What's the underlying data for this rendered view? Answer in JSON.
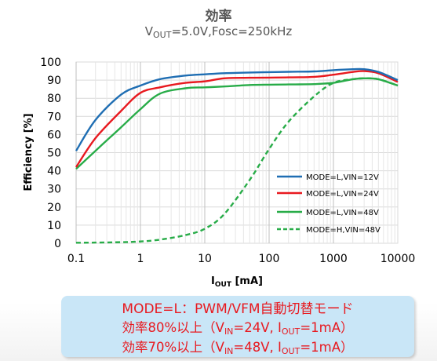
{
  "chart_data": {
    "type": "line",
    "title": "効率",
    "subtitle": {
      "pre": "V",
      "sub": "OUT",
      "post": "=5.0V,Fosc=250kHz"
    },
    "xlabel": {
      "pre": "I",
      "sub": "OUT",
      "post": " [mA]"
    },
    "ylabel": "Efficiency [%]",
    "x_scale": "log",
    "xlim": [
      0.1,
      10000
    ],
    "ylim": [
      0,
      100
    ],
    "x_ticks": [
      "0.1",
      "1",
      "10",
      "100",
      "1000",
      "10000"
    ],
    "y_ticks": [
      "0",
      "10",
      "20",
      "30",
      "40",
      "50",
      "60",
      "70",
      "80",
      "90",
      "100"
    ],
    "grid": true,
    "legend_position": "lower-right",
    "series": [
      {
        "name": "MODE=L,VIN=12V",
        "color": "#1f6eb3",
        "style": "solid",
        "x": [
          0.1,
          0.2,
          0.5,
          1,
          2,
          5,
          10,
          20,
          50,
          100,
          200,
          500,
          1000,
          2000,
          3000,
          5000,
          10000
        ],
        "y": [
          51,
          68,
          82,
          87,
          90.5,
          92.5,
          93.2,
          93.8,
          94.2,
          94.4,
          94.6,
          94.8,
          95.5,
          96,
          96,
          94.5,
          90
        ]
      },
      {
        "name": "MODE=L,VIN=24V",
        "color": "#e8191f",
        "style": "solid",
        "x": [
          0.1,
          0.2,
          0.5,
          1,
          2,
          5,
          10,
          20,
          50,
          100,
          200,
          500,
          1000,
          2000,
          3000,
          5000,
          10000
        ],
        "y": [
          42,
          58,
          73,
          83,
          86,
          88.5,
          89.3,
          91,
          91.3,
          91.4,
          91.5,
          91.8,
          93,
          94.5,
          95,
          93.8,
          89
        ]
      },
      {
        "name": "MODE=L,VIN=48V",
        "color": "#28ac48",
        "style": "solid",
        "x": [
          0.1,
          0.2,
          0.5,
          1,
          2,
          5,
          10,
          20,
          50,
          100,
          200,
          500,
          1000,
          2000,
          3000,
          5000,
          10000
        ],
        "y": [
          41,
          51,
          64,
          74,
          82.5,
          85.5,
          86,
          86.5,
          87.3,
          87.5,
          87.6,
          87.8,
          88.5,
          90.5,
          91,
          90.5,
          87
        ]
      },
      {
        "name": "MODE=H,VIN=48V",
        "color": "#28ac48",
        "style": "dashed",
        "x": [
          0.1,
          0.2,
          0.5,
          1,
          2,
          5,
          10,
          20,
          50,
          100,
          200,
          500,
          1000,
          2000,
          3000,
          5000,
          10000
        ],
        "y": [
          0.3,
          0.4,
          0.6,
          1,
          2,
          4.5,
          8,
          16,
          35,
          52,
          67,
          81,
          88.5,
          90.5,
          91,
          90.5,
          87
        ]
      }
    ]
  },
  "callout": {
    "line1": "MODE=L：PWM/VFM自動切替モード",
    "line2": {
      "a": "効率80%以上（V",
      "a_sub": "IN",
      "b": "=24V, I",
      "b_sub": "OUT",
      "c": "=1mA）"
    },
    "line3": {
      "a": "効率70%以上（V",
      "a_sub": "IN",
      "b": "=48V, I",
      "b_sub": "OUT",
      "c": "=1mA）"
    }
  }
}
